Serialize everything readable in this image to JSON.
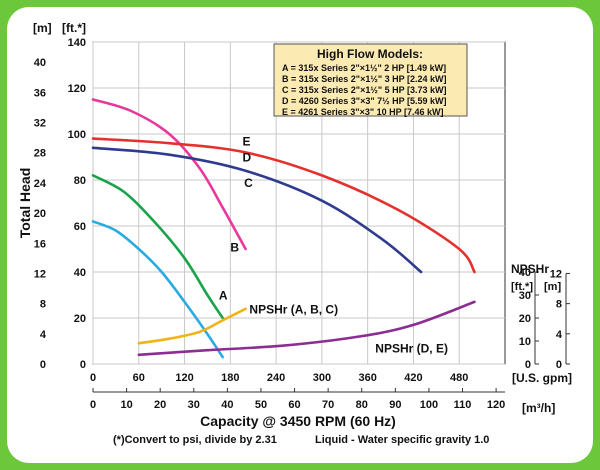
{
  "chart_data": {
    "type": "line",
    "title": "",
    "legend": {
      "title": "High Flow Models:",
      "placement": "top-right",
      "items": [
        "A = 315x Series 2\"×1½\" 2 HP [1.49 kW]",
        "B = 315x Series 2\"×1½\" 3 HP [2.24 kW]",
        "C = 315x Series 2\"×1½\" 5 HP [3.73 kW]",
        "D = 4260 Series 3\"×3\" 7½ HP [5.59 kW]",
        "E = 4261 Series 3\"×3\" 10 HP [7.46 kW]"
      ]
    },
    "xlabel": "Capacity @ 3450 RPM (60 Hz)",
    "ylabel": "Total Head",
    "x_unit": "[U.S. gpm]",
    "x2_unit": "[m³/h]",
    "y_unit": "[ft.*]",
    "y2_unit": "[m]",
    "npsh_label": "NPSHr",
    "npsh_ft_unit": "[ft.*]",
    "npsh_m_unit": "[m]",
    "footnote": "(*)Convert to psi, divide by 2.31",
    "footnote2": "Liquid - Water specific gravity 1.0",
    "xlim": [
      0,
      540
    ],
    "ylim": [
      0,
      140
    ],
    "x_ticks": [
      0,
      60,
      120,
      180,
      240,
      300,
      360,
      420,
      480
    ],
    "x2_ticks": [
      0,
      10,
      20,
      30,
      40,
      50,
      60,
      70,
      80,
      90,
      100,
      110,
      120
    ],
    "y_ticks": [
      0,
      20,
      40,
      60,
      80,
      100,
      120,
      140
    ],
    "y2_ticks": [
      0,
      4,
      8,
      12,
      16,
      20,
      24,
      28,
      32,
      36,
      40
    ],
    "npsh_ft_ticks": [
      0,
      10,
      20,
      30,
      40
    ],
    "npsh_m_ticks": [
      0,
      4,
      8,
      12
    ],
    "series": [
      {
        "name": "A",
        "color": "#29abe2",
        "label": "A",
        "x": [
          0,
          30,
          60,
          90,
          120,
          150,
          170
        ],
        "y": [
          62,
          58,
          50,
          40,
          27,
          13,
          3
        ]
      },
      {
        "name": "B",
        "color": "#1aa34a",
        "label": "B",
        "x": [
          0,
          40,
          80,
          120,
          150,
          170
        ],
        "y": [
          82,
          75,
          62,
          46,
          30,
          20
        ]
      },
      {
        "name": "C",
        "color": "#e8389c",
        "label": "C",
        "x": [
          0,
          50,
          100,
          140,
          170,
          200
        ],
        "y": [
          115,
          110,
          100,
          85,
          68,
          50
        ]
      },
      {
        "name": "D",
        "color": "#2e3b8f",
        "label": "D",
        "x": [
          0,
          100,
          200,
          300,
          380,
          430
        ],
        "y": [
          94,
          91,
          84,
          71,
          54,
          40
        ]
      },
      {
        "name": "E",
        "color": "#e3312d",
        "label": "E",
        "x": [
          0,
          100,
          200,
          300,
          400,
          480,
          500
        ],
        "y": [
          98,
          96,
          92,
          82,
          67,
          50,
          40
        ]
      }
    ],
    "npsh_series": [
      {
        "name": "NPSHr (A, B, C)",
        "color": "#f2b31a",
        "label": "NPSHr (A, B, C)",
        "x": [
          60,
          100,
          140,
          170,
          200
        ],
        "y": [
          9,
          11,
          14,
          19,
          24
        ]
      },
      {
        "name": "NPSHr (D, E)",
        "color": "#8b2e91",
        "label": "NPSHr (D, E)",
        "x": [
          60,
          150,
          250,
          350,
          420,
          500
        ],
        "y": [
          4,
          6,
          8,
          12,
          17,
          27
        ]
      }
    ]
  }
}
